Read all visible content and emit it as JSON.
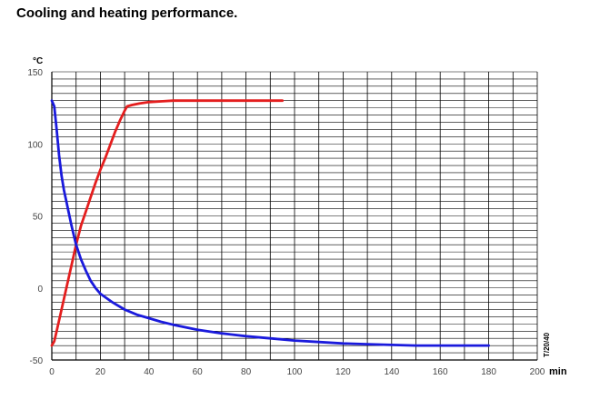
{
  "chart_data": {
    "type": "line",
    "title": "Cooling and heating performance.",
    "ylabel": "°C",
    "xlabel": "min",
    "xlim": [
      0,
      200
    ],
    "ylim": [
      -50,
      150
    ],
    "grid": true,
    "x_ticks": [
      {
        "value": 0,
        "label": "0"
      },
      {
        "value": 20,
        "label": "20"
      },
      {
        "value": 40,
        "label": "40"
      },
      {
        "value": 60,
        "label": "60"
      },
      {
        "value": 80,
        "label": "80"
      },
      {
        "value": 100,
        "label": "100"
      },
      {
        "value": 120,
        "label": "120"
      },
      {
        "value": 140,
        "label": "140"
      },
      {
        "value": 160,
        "label": "160"
      },
      {
        "value": 180,
        "label": "180"
      },
      {
        "value": 200,
        "label": "200"
      }
    ],
    "y_ticks": [
      {
        "value": -50,
        "label": "-50"
      },
      {
        "value": 0,
        "label": "0"
      },
      {
        "value": 50,
        "label": "50"
      },
      {
        "value": 100,
        "label": "100"
      },
      {
        "value": 150,
        "label": "150"
      }
    ],
    "annotation": "T/20/40",
    "series": [
      {
        "color": "#e41e1e",
        "role": "heating",
        "x": [
          0,
          1,
          2,
          4,
          6,
          8,
          10,
          12,
          14,
          16,
          18,
          20,
          22,
          24,
          26,
          28,
          30,
          31,
          33,
          36,
          40,
          45,
          50,
          55,
          60,
          70,
          80,
          90,
          95
        ],
        "y": [
          -40,
          -37,
          -30,
          -15,
          0,
          15,
          30,
          43,
          53,
          63,
          73,
          82,
          90,
          99,
          108,
          116,
          123,
          126,
          127,
          128,
          129,
          129.5,
          130,
          130,
          130,
          130,
          130,
          130,
          130
        ]
      },
      {
        "color": "#1a1adc",
        "role": "cooling",
        "x": [
          0,
          1,
          2,
          3,
          4,
          5,
          6,
          7,
          8,
          9,
          10,
          12,
          14,
          16,
          18,
          20,
          25,
          30,
          35,
          40,
          45,
          50,
          60,
          70,
          80,
          90,
          100,
          110,
          120,
          130,
          140,
          150,
          160,
          170,
          180
        ],
        "y": [
          130,
          126,
          110,
          92,
          78,
          68,
          60,
          52,
          44,
          37,
          30,
          20,
          12,
          5,
          0,
          -4,
          -10,
          -15,
          -18.5,
          -21,
          -23.5,
          -25.5,
          -29,
          -31.5,
          -33.5,
          -35,
          -36.5,
          -37.5,
          -38.5,
          -39,
          -39.5,
          -40,
          -40,
          -40,
          -40
        ]
      }
    ]
  }
}
